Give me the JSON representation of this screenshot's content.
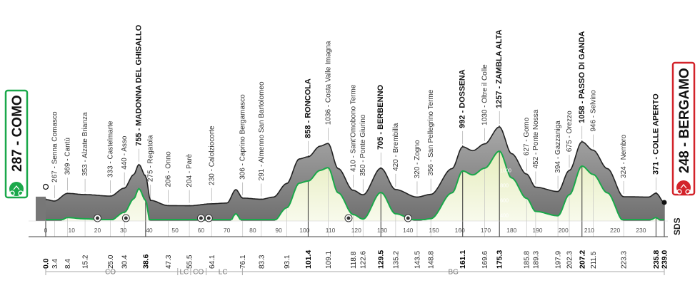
{
  "chart_data": {
    "type": "area",
    "title": "",
    "xlabel": "",
    "ylabel": "",
    "xlim": [
      0,
      239
    ],
    "ylim": [
      0,
      1300
    ],
    "x_ticks": [
      0,
      10,
      20,
      30,
      40,
      50,
      60,
      70,
      80,
      90,
      100,
      110,
      120,
      130,
      140,
      150,
      160,
      170,
      180,
      190,
      200,
      210,
      220,
      230
    ],
    "alt_ticks": [
      {
        "value": 200,
        "label": "200"
      },
      {
        "value": 400,
        "label": "400"
      },
      {
        "value": 600,
        "label": "600"
      },
      {
        "value": 800,
        "label": "800"
      },
      {
        "value": 1000,
        "label": "1000"
      }
    ],
    "profile": [
      {
        "x": 0,
        "y": 287
      },
      {
        "x": 3.4,
        "y": 267
      },
      {
        "x": 8.4,
        "y": 369
      },
      {
        "x": 15.2,
        "y": 353
      },
      {
        "x": 25,
        "y": 333
      },
      {
        "x": 30.4,
        "y": 440
      },
      {
        "x": 34,
        "y": 620
      },
      {
        "x": 36,
        "y": 755
      },
      {
        "x": 38.6,
        "y": 600
      },
      {
        "x": 40.5,
        "y": 275
      },
      {
        "x": 47.3,
        "y": 206
      },
      {
        "x": 55.5,
        "y": 204
      },
      {
        "x": 64.1,
        "y": 230
      },
      {
        "x": 70,
        "y": 240
      },
      {
        "x": 73.5,
        "y": 420
      },
      {
        "x": 76.1,
        "y": 306
      },
      {
        "x": 83.3,
        "y": 291
      },
      {
        "x": 88,
        "y": 320
      },
      {
        "x": 93.1,
        "y": 500
      },
      {
        "x": 98,
        "y": 830
      },
      {
        "x": 101.4,
        "y": 858
      },
      {
        "x": 106,
        "y": 1000
      },
      {
        "x": 109.1,
        "y": 1036
      },
      {
        "x": 113,
        "y": 700
      },
      {
        "x": 118.8,
        "y": 410
      },
      {
        "x": 122.6,
        "y": 350
      },
      {
        "x": 129.5,
        "y": 705
      },
      {
        "x": 135.2,
        "y": 420
      },
      {
        "x": 143.5,
        "y": 320
      },
      {
        "x": 148.8,
        "y": 356
      },
      {
        "x": 157,
        "y": 700
      },
      {
        "x": 161.1,
        "y": 992
      },
      {
        "x": 165,
        "y": 940
      },
      {
        "x": 169.6,
        "y": 1030
      },
      {
        "x": 175.3,
        "y": 1257
      },
      {
        "x": 180,
        "y": 900
      },
      {
        "x": 185.8,
        "y": 627
      },
      {
        "x": 189.3,
        "y": 452
      },
      {
        "x": 197.9,
        "y": 394
      },
      {
        "x": 202.3,
        "y": 675
      },
      {
        "x": 207.2,
        "y": 1058
      },
      {
        "x": 211.5,
        "y": 946
      },
      {
        "x": 217,
        "y": 700
      },
      {
        "x": 223.3,
        "y": 324
      },
      {
        "x": 233,
        "y": 320
      },
      {
        "x": 235.8,
        "y": 371
      },
      {
        "x": 239,
        "y": 248
      }
    ],
    "places": [
      {
        "label": "267 - Senna Comasco",
        "x": 3.4,
        "y": 267,
        "bold": false
      },
      {
        "label": "369 - Cantù",
        "x": 8.4,
        "y": 369,
        "bold": false
      },
      {
        "label": "353 - Alzate Brianza",
        "x": 15.2,
        "y": 353,
        "bold": false
      },
      {
        "label": "333 - Castelmarte",
        "x": 25.0,
        "y": 333,
        "bold": false
      },
      {
        "label": "440 - Asso",
        "x": 30.4,
        "y": 440,
        "bold": false
      },
      {
        "label": "755 - MADONNA DEL GHISALLO",
        "x": 36.0,
        "y": 755,
        "bold": true
      },
      {
        "label": "275 - Regatola",
        "x": 40.5,
        "y": 275,
        "bold": false
      },
      {
        "label": "206 - Onno",
        "x": 47.3,
        "y": 206,
        "bold": false
      },
      {
        "label": "204 - Parè",
        "x": 55.5,
        "y": 204,
        "bold": false
      },
      {
        "label": "230 - Calolziocorte",
        "x": 64.1,
        "y": 230,
        "bold": false
      },
      {
        "label": "306 - Caprino Bergamasco",
        "x": 76.1,
        "y": 306,
        "bold": false
      },
      {
        "label": "291 - Almenno San Bartolomeo",
        "x": 83.3,
        "y": 291,
        "bold": false
      },
      {
        "label": "858 - RONCOLA",
        "x": 101.4,
        "y": 858,
        "bold": true
      },
      {
        "label": "1036 - Costa Valle Imagna",
        "x": 109.1,
        "y": 1036,
        "bold": false
      },
      {
        "label": "410 - Sant'Omobono Terme",
        "x": 118.8,
        "y": 410,
        "bold": false
      },
      {
        "label": "350 - Ponte Giurino",
        "x": 122.6,
        "y": 350,
        "bold": false
      },
      {
        "label": "705 - BERBENNO",
        "x": 129.5,
        "y": 705,
        "bold": true
      },
      {
        "label": "420 - Brembilla",
        "x": 135.2,
        "y": 420,
        "bold": false
      },
      {
        "label": "320 - Zogno",
        "x": 143.5,
        "y": 320,
        "bold": false
      },
      {
        "label": "356 - San Pellegrino Terme",
        "x": 148.8,
        "y": 356,
        "bold": false
      },
      {
        "label": "992 - DOSSENA",
        "x": 161.1,
        "y": 992,
        "bold": true
      },
      {
        "label": "1030 - Oltre il Colle",
        "x": 169.6,
        "y": 1030,
        "bold": false
      },
      {
        "label": "1257 - ZAMBLA ALTA",
        "x": 175.3,
        "y": 1257,
        "bold": true
      },
      {
        "label": "627 - Gorno",
        "x": 185.8,
        "y": 627,
        "bold": false
      },
      {
        "label": "452 - Ponte Nossa",
        "x": 189.3,
        "y": 452,
        "bold": false
      },
      {
        "label": "394 - Gazzaniga",
        "x": 197.9,
        "y": 394,
        "bold": false
      },
      {
        "label": "675 - Orezzo",
        "x": 202.3,
        "y": 675,
        "bold": false
      },
      {
        "label": "1058 - PASSO DI GANDA",
        "x": 207.2,
        "y": 1058,
        "bold": true
      },
      {
        "label": "946 - Selvino",
        "x": 211.5,
        "y": 946,
        "bold": false
      },
      {
        "label": "324 - Nembro",
        "x": 223.3,
        "y": 324,
        "bold": false
      },
      {
        "label": "371 - COLLE APERTO",
        "x": 235.8,
        "y": 371,
        "bold": true
      }
    ],
    "km_marks": [
      {
        "label": "0.0",
        "x": 0,
        "bold": true
      },
      {
        "label": "3.4",
        "x": 3.4,
        "bold": false
      },
      {
        "label": "8.4",
        "x": 8.4,
        "bold": false
      },
      {
        "label": "15.2",
        "x": 15.2,
        "bold": false
      },
      {
        "label": "25.0",
        "x": 25.0,
        "bold": false
      },
      {
        "label": "30.4",
        "x": 30.4,
        "bold": false
      },
      {
        "label": "38.6",
        "x": 38.6,
        "bold": true
      },
      {
        "label": "47.3",
        "x": 47.3,
        "bold": false
      },
      {
        "label": "55.5",
        "x": 55.5,
        "bold": false
      },
      {
        "label": "64.1",
        "x": 64.1,
        "bold": false
      },
      {
        "label": "76.1",
        "x": 76.1,
        "bold": false
      },
      {
        "label": "83.3",
        "x": 83.3,
        "bold": false
      },
      {
        "label": "93.1",
        "x": 93.1,
        "bold": false
      },
      {
        "label": "101.4",
        "x": 101.4,
        "bold": true
      },
      {
        "label": "109.1",
        "x": 109.1,
        "bold": false
      },
      {
        "label": "118.8",
        "x": 118.8,
        "bold": false
      },
      {
        "label": "122.6",
        "x": 122.6,
        "bold": false
      },
      {
        "label": "129.5",
        "x": 129.5,
        "bold": true
      },
      {
        "label": "135.2",
        "x": 135.2,
        "bold": false
      },
      {
        "label": "143.5",
        "x": 143.5,
        "bold": false
      },
      {
        "label": "148.8",
        "x": 148.8,
        "bold": false
      },
      {
        "label": "161.1",
        "x": 161.1,
        "bold": true
      },
      {
        "label": "169.6",
        "x": 169.6,
        "bold": false
      },
      {
        "label": "175.3",
        "x": 175.3,
        "bold": true
      },
      {
        "label": "185.8",
        "x": 185.8,
        "bold": false
      },
      {
        "label": "189.3",
        "x": 189.3,
        "bold": false
      },
      {
        "label": "197.9",
        "x": 197.9,
        "bold": false
      },
      {
        "label": "202.3",
        "x": 202.3,
        "bold": false
      },
      {
        "label": "207.2",
        "x": 207.2,
        "bold": true
      },
      {
        "label": "211.5",
        "x": 211.5,
        "bold": false
      },
      {
        "label": "223.3",
        "x": 223.3,
        "bold": false
      },
      {
        "label": "235.8",
        "x": 235.8,
        "bold": true
      },
      {
        "label": "239.0",
        "x": 239.0,
        "bold": true
      }
    ],
    "sprints_km": [
      20,
      31,
      60,
      63,
      117,
      140
    ],
    "provinces": [
      {
        "label": "CO",
        "from": 0,
        "to": 50
      },
      {
        "label": "LC",
        "from": 51,
        "to": 56
      },
      {
        "label": "CO",
        "from": 56,
        "to": 62
      },
      {
        "label": "LC",
        "from": 62,
        "to": 75
      },
      {
        "label": "BG",
        "from": 76,
        "to": 239
      }
    ],
    "start": {
      "label": "287 - COMO"
    },
    "finish": {
      "label": "248 - BERGAMO"
    },
    "brand": "SDS",
    "colors": {
      "green": "#1aa84a",
      "red": "#d3232a",
      "fill_top": "#8c8c8c",
      "fill_bottom": "#f3f6dc"
    }
  }
}
